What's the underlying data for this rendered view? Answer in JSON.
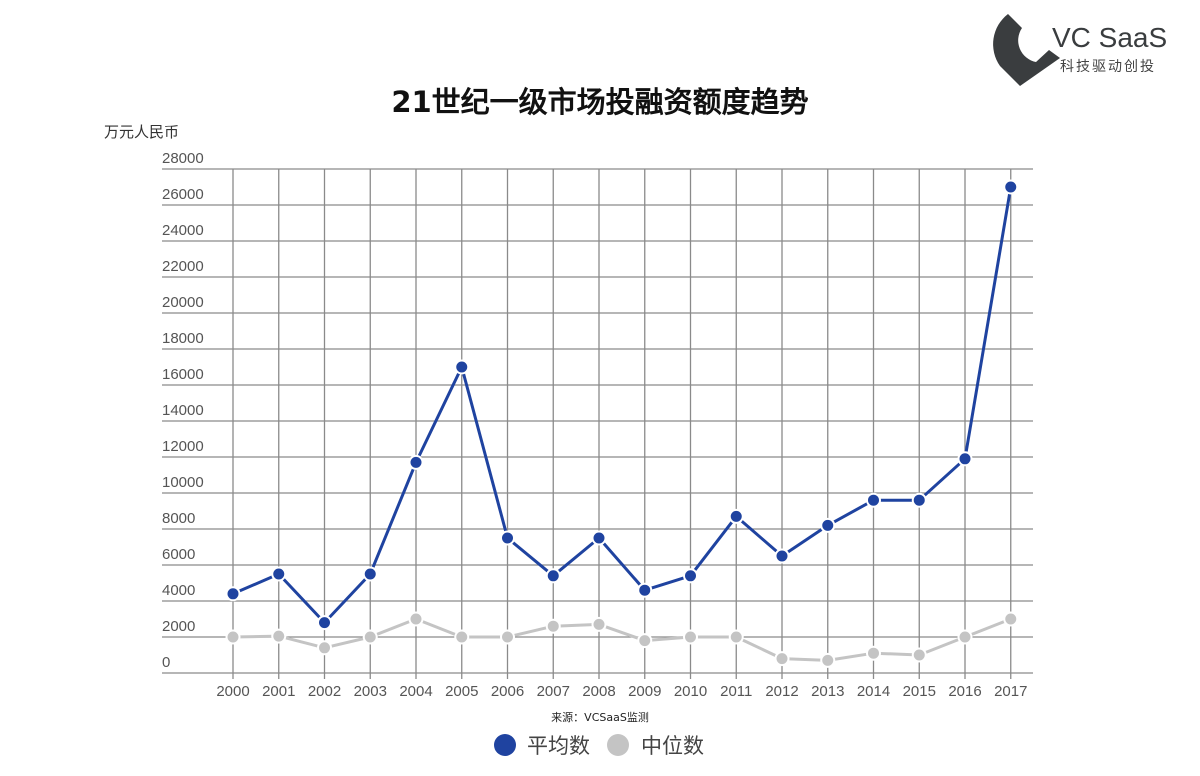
{
  "logo": {
    "name": "VC SaaS",
    "tagline": "科技驱动创投",
    "color": "#3a3d3f"
  },
  "chart_data": {
    "type": "line",
    "title": "21世纪一级市场投融资额度趋势",
    "ylabel": "万元人民币",
    "xlabel": "",
    "source": "来源：VCSaaS监测",
    "ylim": [
      0,
      28000
    ],
    "ytick_step": 2000,
    "yticks": [
      "0",
      "2000",
      "4000",
      "6000",
      "8000",
      "10000",
      "12000",
      "14000",
      "16000",
      "18000",
      "20000",
      "22000",
      "24000",
      "26000",
      "28000"
    ],
    "grid": true,
    "legend_placement": "bottom-center",
    "categories": [
      "2000",
      "2001",
      "2002",
      "2003",
      "2004",
      "2005",
      "2006",
      "2007",
      "2008",
      "2009",
      "2010",
      "2011",
      "2012",
      "2013",
      "2014",
      "2015",
      "2016",
      "2017"
    ],
    "series": [
      {
        "name": "平均数",
        "color": "#1f43a0",
        "values": [
          4400,
          5500,
          2800,
          5500,
          11700,
          17000,
          7500,
          5400,
          7500,
          4600,
          5400,
          8700,
          6500,
          8200,
          9600,
          9600,
          11900,
          27000
        ]
      },
      {
        "name": "中位数",
        "color": "#c4c4c4",
        "values": [
          2000,
          2050,
          1400,
          2000,
          3000,
          2000,
          2000,
          2600,
          2700,
          1800,
          2000,
          2000,
          800,
          700,
          1100,
          1000,
          2000,
          3000
        ]
      }
    ]
  }
}
